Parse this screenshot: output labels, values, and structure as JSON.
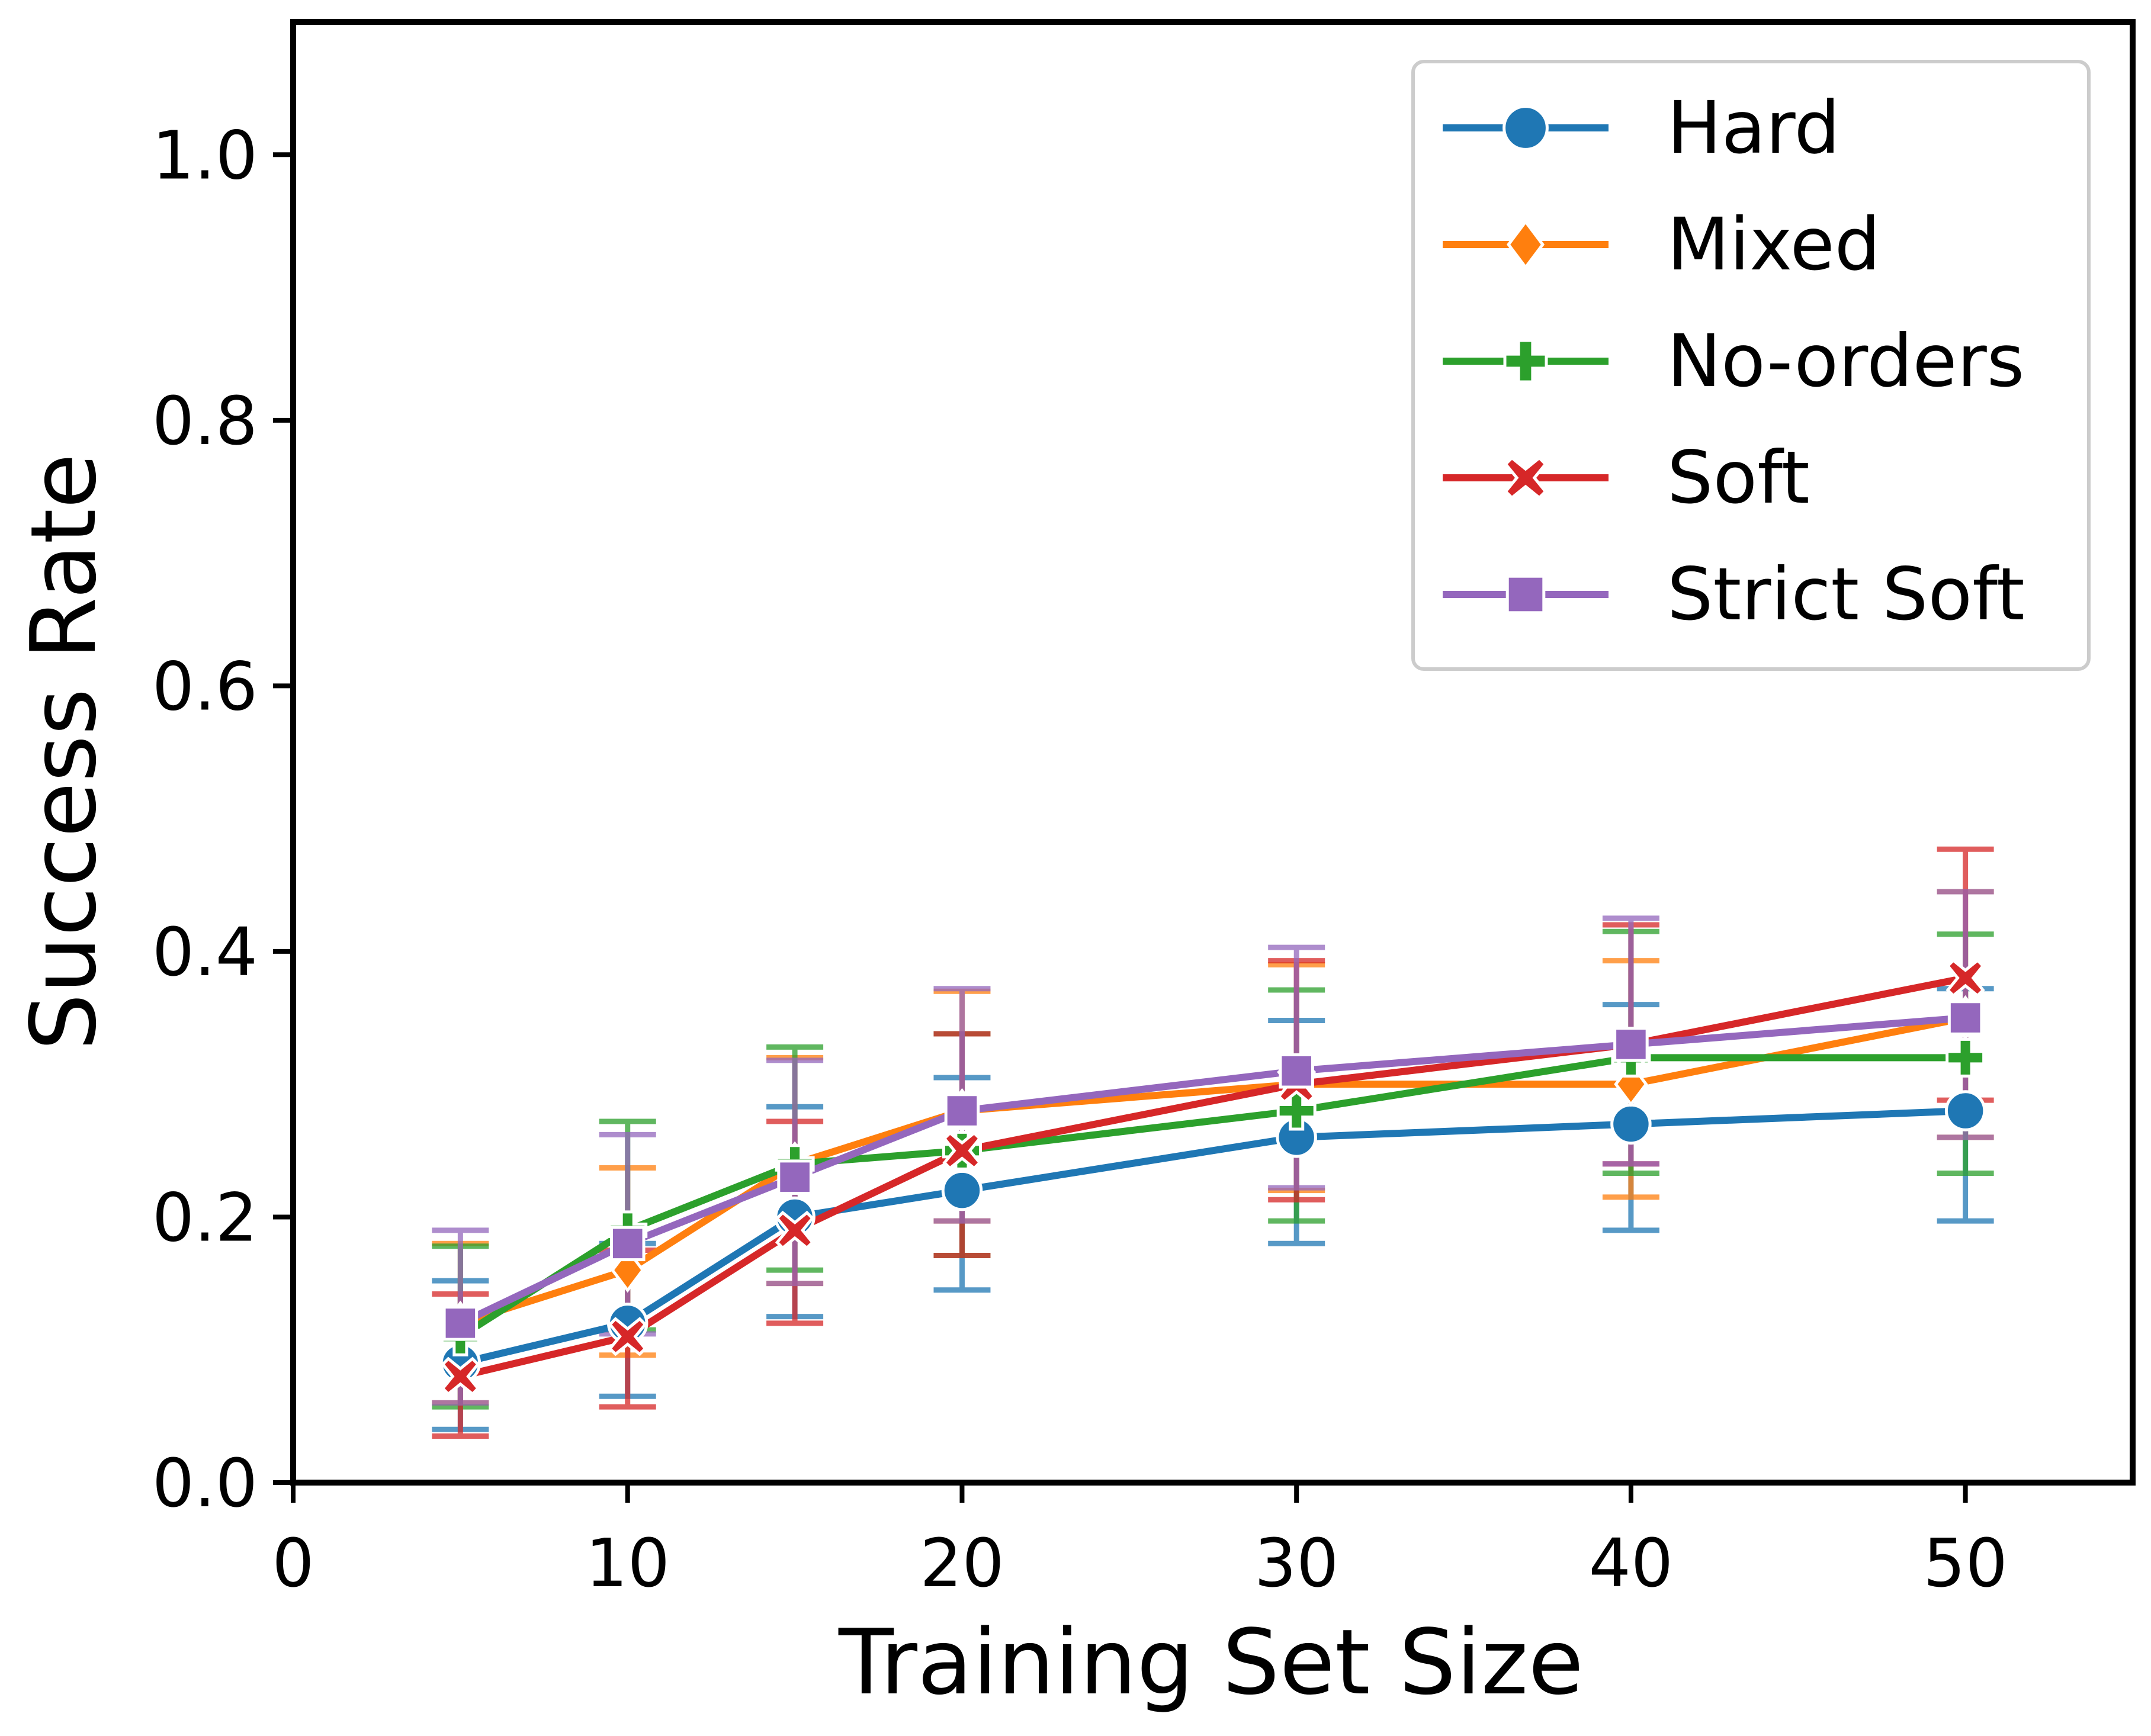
{
  "chart_data": {
    "type": "line",
    "title": "",
    "xlabel": "Training Set Size",
    "ylabel": "Success Rate",
    "xlim": [
      0,
      55
    ],
    "ylim": [
      0,
      1.1
    ],
    "xticks": [
      0,
      10,
      20,
      30,
      40,
      50
    ],
    "xtick_labels": [
      "0",
      "10",
      "20",
      "30",
      "40",
      "50"
    ],
    "yticks": [
      0.0,
      0.2,
      0.4,
      0.6,
      0.8,
      1.0
    ],
    "ytick_labels": [
      "0.0",
      "0.2",
      "0.4",
      "0.6",
      "0.8",
      "1.0"
    ],
    "grid": false,
    "legend_position": "top-right",
    "x": [
      5,
      10,
      15,
      20,
      30,
      40,
      50
    ],
    "series": [
      {
        "name": "Hard",
        "color": "#1f77b4",
        "marker": "circle",
        "values": [
          0.09,
          0.12,
          0.2,
          0.22,
          0.26,
          0.27,
          0.28
        ],
        "err_low": [
          0.04,
          0.065,
          0.125,
          0.145,
          0.18,
          0.19,
          0.197
        ],
        "err_high": [
          0.152,
          0.18,
          0.283,
          0.305,
          0.348,
          0.36,
          0.372
        ]
      },
      {
        "name": "Mixed",
        "color": "#ff7f0e",
        "marker": "diamond",
        "values": [
          0.12,
          0.16,
          0.24,
          0.28,
          0.3,
          0.3,
          0.35
        ],
        "err_low": [
          0.06,
          0.096,
          0.15,
          0.197,
          0.22,
          0.215,
          0.26
        ],
        "err_high": [
          0.18,
          0.237,
          0.32,
          0.37,
          0.39,
          0.393,
          0.445
        ]
      },
      {
        "name": "No-orders",
        "color": "#2ca02c",
        "marker": "plus",
        "values": [
          0.11,
          0.19,
          0.24,
          0.25,
          0.28,
          0.32,
          0.32
        ],
        "err_low": [
          0.057,
          0.115,
          0.16,
          0.171,
          0.197,
          0.233,
          0.233
        ],
        "err_high": [
          0.178,
          0.272,
          0.328,
          0.338,
          0.371,
          0.415,
          0.413
        ]
      },
      {
        "name": "Soft",
        "color": "#d62728",
        "marker": "x",
        "values": [
          0.08,
          0.11,
          0.19,
          0.25,
          0.3,
          0.33,
          0.38
        ],
        "err_low": [
          0.035,
          0.057,
          0.12,
          0.171,
          0.213,
          0.24,
          0.288
        ],
        "err_high": [
          0.142,
          0.175,
          0.272,
          0.338,
          0.393,
          0.42,
          0.477
        ]
      },
      {
        "name": "Strict Soft",
        "color": "#9467bd",
        "marker": "square",
        "values": [
          0.12,
          0.18,
          0.23,
          0.28,
          0.31,
          0.33,
          0.35
        ],
        "err_low": [
          0.06,
          0.112,
          0.15,
          0.197,
          0.222,
          0.24,
          0.26
        ],
        "err_high": [
          0.19,
          0.262,
          0.318,
          0.372,
          0.403,
          0.425,
          0.445
        ]
      }
    ]
  }
}
